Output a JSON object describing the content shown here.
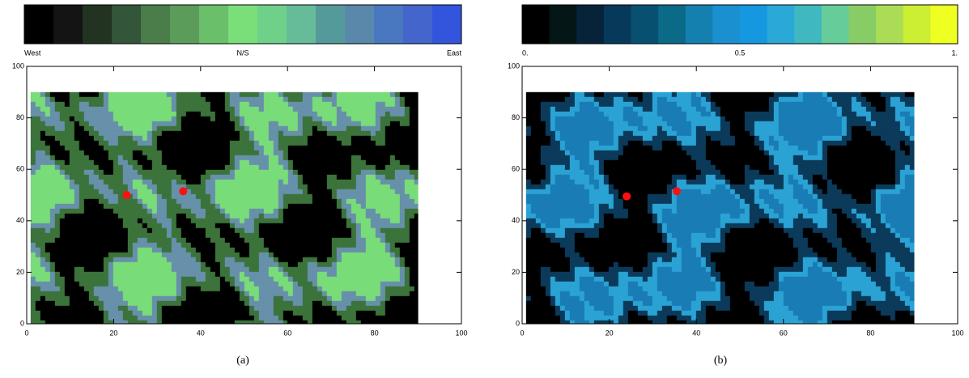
{
  "chart_data": [
    {
      "type": "scatter",
      "caption": "(a)",
      "colorbar_colors": [
        "#000000",
        "#141414",
        "#223322",
        "#33553a",
        "#4a7d4a",
        "#5b9c5b",
        "#6abf6a",
        "#7adf78",
        "#6fd08a",
        "#66bb99",
        "#559a9a",
        "#5a88aa",
        "#4a78c0",
        "#4466cc",
        "#3355dd"
      ],
      "colorbar_labels": [
        "West",
        "N/S",
        "East"
      ],
      "contour_colors": [
        "#000000",
        "#3b733b",
        "#78dc78",
        "#6790aa"
      ],
      "series": [
        {
          "color": "#ff1010",
          "x": [
            23,
            36
          ],
          "y": [
            50,
            51.5
          ]
        }
      ],
      "xlim": [
        0,
        100
      ],
      "ylim": [
        0,
        100
      ],
      "xticks": [
        0,
        20,
        40,
        60,
        80,
        100
      ],
      "yticks": [
        0,
        20,
        40,
        60,
        80,
        100
      ]
    },
    {
      "type": "scatter",
      "caption": "(b)",
      "colorbar_colors": [
        "#000000",
        "#041616",
        "#06233a",
        "#073a5a",
        "#085070",
        "#0a6a88",
        "#1480b0",
        "#1a90d0",
        "#1598e0",
        "#2aa8d8",
        "#40b8c0",
        "#66cc99",
        "#88cc66",
        "#aadd55",
        "#ccee33",
        "#eeff22"
      ],
      "colorbar_labels": [
        "0.",
        "0.5",
        "1."
      ],
      "contour_colors": [
        "#000000",
        "#0b3a5a",
        "#1a7cb4",
        "#2aa2d4"
      ],
      "series": [
        {
          "color": "#ff1010",
          "x": [
            24,
            35.5
          ],
          "y": [
            49.5,
            51.5
          ]
        }
      ],
      "xlim": [
        0,
        100
      ],
      "ylim": [
        0,
        100
      ],
      "xticks": [
        0,
        20,
        40,
        60,
        80,
        100
      ],
      "yticks": [
        0,
        20,
        40,
        60,
        80,
        100
      ]
    }
  ]
}
